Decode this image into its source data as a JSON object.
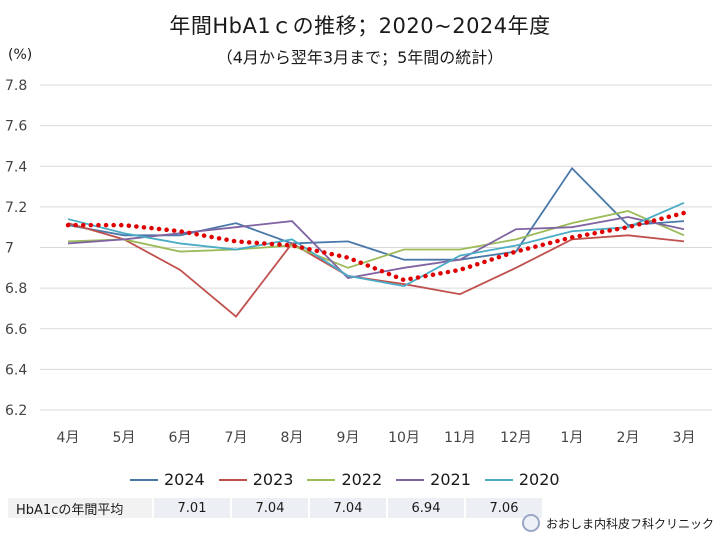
{
  "header": {
    "title": "年間HbA1ｃの推移；2020~2024年度",
    "subtitle": "（4月から翌年3月まで；5年間の統計）",
    "unit": "(%)"
  },
  "chart_data": {
    "type": "line",
    "title": "年間HbA1ｃの推移；2020~2024年度",
    "subtitle": "（4月から翌年3月まで；5年間の統計）",
    "ylabel": "(%)",
    "ylim": [
      6.2,
      7.8
    ],
    "yticks": [
      "6.2",
      "6.4",
      "6.6",
      "6.8",
      "7",
      "7.2",
      "7.4",
      "7.6",
      "7.8"
    ],
    "categories": [
      "4月",
      "5月",
      "6月",
      "7月",
      "8月",
      "9月",
      "10月",
      "11月",
      "12月",
      "1月",
      "2月",
      "3月"
    ],
    "grid": true,
    "legend_position": "bottom",
    "series": [
      {
        "name": "2024",
        "color": "#4a78a8",
        "values": [
          7.11,
          7.06,
          7.06,
          7.12,
          7.02,
          7.03,
          6.94,
          6.94,
          6.98,
          7.39,
          7.11,
          7.13
        ]
      },
      {
        "name": "2023",
        "color": "#c0504d",
        "values": [
          7.12,
          7.04,
          6.89,
          6.66,
          7.02,
          6.86,
          6.82,
          6.77,
          6.9,
          7.04,
          7.06,
          7.03
        ]
      },
      {
        "name": "2022",
        "color": "#9bbb59",
        "values": [
          7.03,
          7.04,
          6.98,
          6.99,
          7.01,
          6.9,
          6.99,
          6.99,
          7.04,
          7.12,
          7.18,
          7.06
        ]
      },
      {
        "name": "2021",
        "color": "#8064a2",
        "values": [
          7.02,
          7.04,
          7.07,
          7.1,
          7.13,
          6.85,
          6.9,
          6.94,
          7.09,
          7.1,
          7.15,
          7.09
        ]
      },
      {
        "name": "2020",
        "color": "#4bacc6",
        "values": [
          7.14,
          7.07,
          7.02,
          6.99,
          7.04,
          6.86,
          6.81,
          6.96,
          7.01,
          7.08,
          7.1,
          7.22
        ]
      }
    ],
    "trend": {
      "style": "dotted",
      "color": "#e00000",
      "values": [
        7.11,
        7.11,
        7.08,
        7.03,
        7.01,
        6.95,
        6.84,
        6.89,
        6.98,
        7.05,
        7.1,
        7.17
      ]
    }
  },
  "average_table": {
    "label": "HbA1cの年間平均",
    "values": [
      "7.01",
      "7.04",
      "7.04",
      "6.94",
      "7.06"
    ]
  },
  "credit": {
    "text": "おおしま内科皮フ科クリニック"
  }
}
